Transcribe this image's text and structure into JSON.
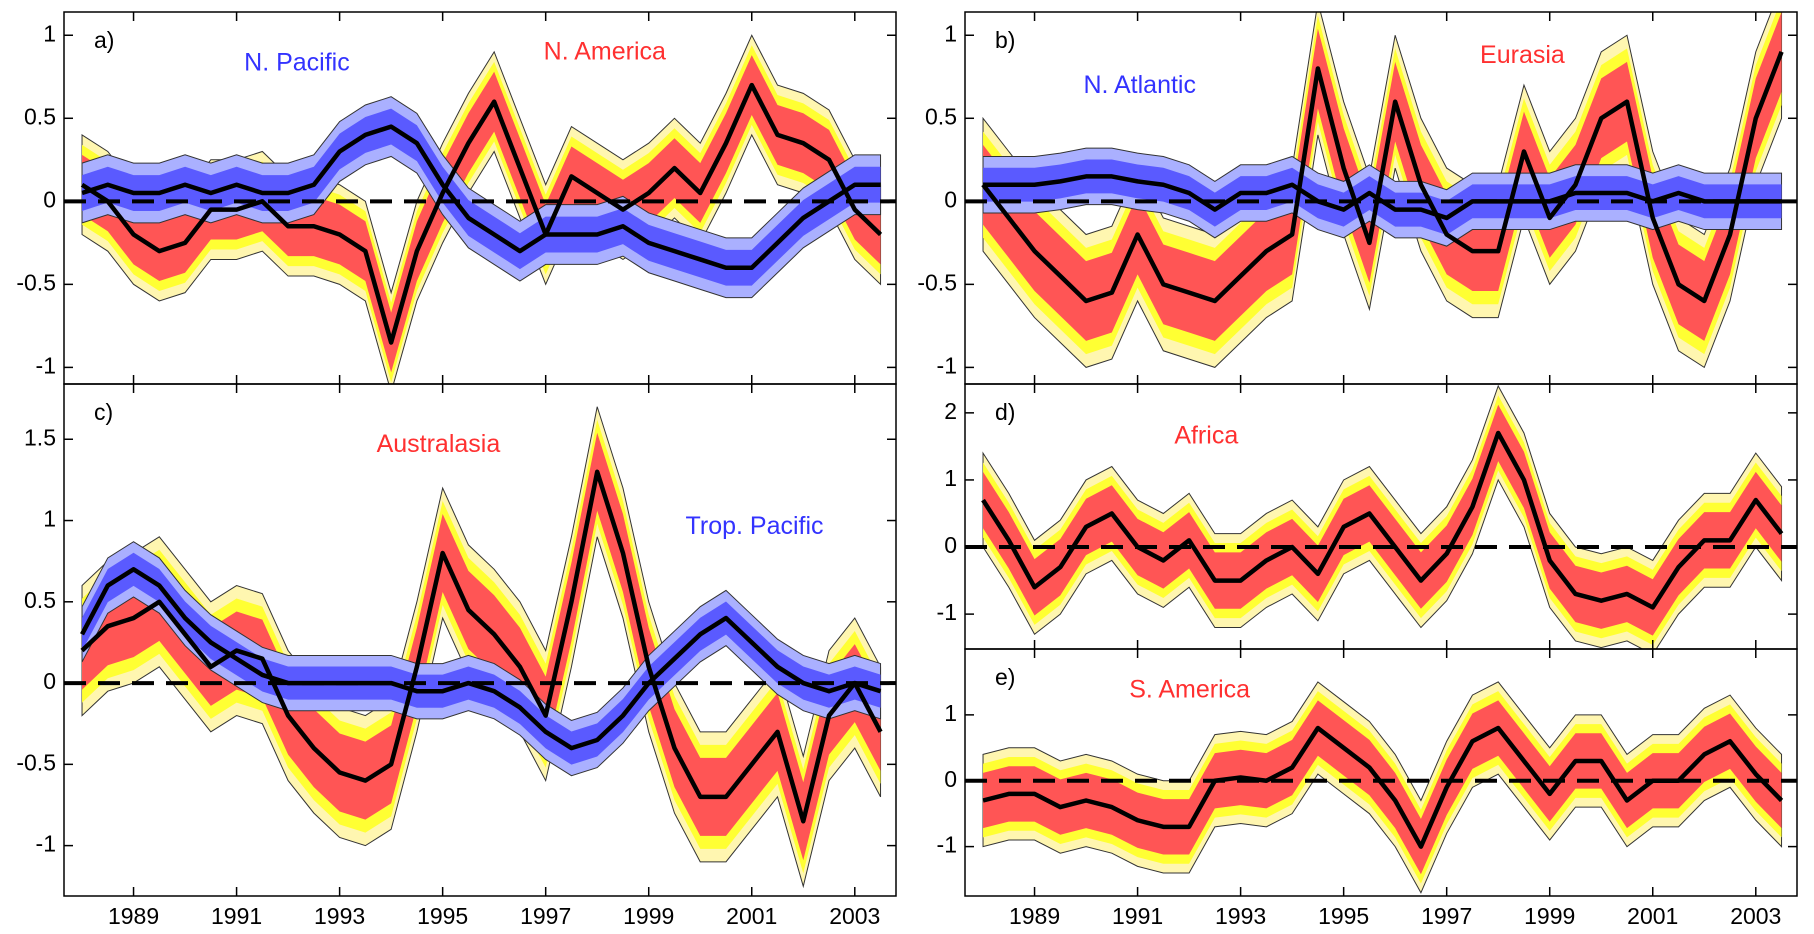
{
  "chart_data": [
    {
      "type": "line",
      "panel": "a)",
      "xlim": [
        1987.65,
        2003.8
      ],
      "ylim": [
        -1.1,
        1.14
      ],
      "xticks": [
        1989,
        1991,
        1993,
        1995,
        1997,
        1999,
        2001,
        2003
      ],
      "show_xtick_labels": false,
      "yticks": [
        -1,
        -0.5,
        0,
        0.5,
        1
      ],
      "zero_line": true,
      "x": [
        1988,
        1988.5,
        1989,
        1989.5,
        1990,
        1990.5,
        1991,
        1991.5,
        1992,
        1992.5,
        1993,
        1993.5,
        1994,
        1994.5,
        1995,
        1995.5,
        1996,
        1996.5,
        1997,
        1997.5,
        1998,
        1998.5,
        1999,
        1999.5,
        2000,
        2000.5,
        2001,
        2001.5,
        2002,
        2002.5,
        2003,
        2003.5
      ],
      "series": [
        {
          "name": "N. America",
          "color": "#000000",
          "label_color": "#ff3030",
          "band_colors": [
            "#fff6b0",
            "#ffff33",
            "#ff5555"
          ],
          "error": 0.3,
          "values": [
            0.1,
            0.0,
            -0.2,
            -0.3,
            -0.25,
            -0.05,
            -0.05,
            0.0,
            -0.15,
            -0.15,
            -0.2,
            -0.3,
            -0.85,
            -0.3,
            0.05,
            0.35,
            0.6,
            0.2,
            -0.2,
            0.15,
            0.05,
            -0.05,
            0.05,
            0.2,
            0.05,
            0.35,
            0.7,
            0.4,
            0.35,
            0.25,
            -0.05,
            -0.2
          ]
        },
        {
          "name": "N. Pacific",
          "color": "#000000",
          "label_color": "#3333ff",
          "band_colors": [
            "#aab0ff",
            "#5a5aff"
          ],
          "error": 0.18,
          "values": [
            0.05,
            0.1,
            0.05,
            0.05,
            0.1,
            0.05,
            0.1,
            0.05,
            0.05,
            0.1,
            0.3,
            0.4,
            0.45,
            0.35,
            0.1,
            -0.1,
            -0.2,
            -0.3,
            -0.2,
            -0.2,
            -0.2,
            -0.15,
            -0.25,
            -0.3,
            -0.35,
            -0.4,
            -0.4,
            -0.25,
            -0.1,
            0.0,
            0.1,
            0.1
          ]
        }
      ]
    },
    {
      "type": "line",
      "panel": "b)",
      "xlim": [
        1987.65,
        2003.8
      ],
      "ylim": [
        -1.1,
        1.14
      ],
      "xticks": [
        1989,
        1991,
        1993,
        1995,
        1997,
        1999,
        2001,
        2003
      ],
      "show_xtick_labels": false,
      "yticks": [
        -1,
        -0.5,
        0,
        0.5,
        1
      ],
      "zero_line": true,
      "x": [
        1988,
        1988.5,
        1989,
        1989.5,
        1990,
        1990.5,
        1991,
        1991.5,
        1992,
        1992.5,
        1993,
        1993.5,
        1994,
        1994.5,
        1995,
        1995.5,
        1996,
        1996.5,
        1997,
        1997.5,
        1998,
        1998.5,
        1999,
        1999.5,
        2000,
        2000.5,
        2001,
        2001.5,
        2002,
        2002.5,
        2003,
        2003.5
      ],
      "series": [
        {
          "name": "Eurasia",
          "color": "#000000",
          "label_color": "#ff3030",
          "band_colors": [
            "#fff6b0",
            "#ffff33",
            "#ff5555"
          ],
          "error": 0.4,
          "values": [
            0.1,
            -0.1,
            -0.3,
            -0.45,
            -0.6,
            -0.55,
            -0.2,
            -0.5,
            -0.55,
            -0.6,
            -0.45,
            -0.3,
            -0.2,
            0.8,
            0.2,
            -0.25,
            0.6,
            0.1,
            -0.2,
            -0.3,
            -0.3,
            0.3,
            -0.1,
            0.1,
            0.5,
            0.6,
            -0.1,
            -0.5,
            -0.6,
            -0.2,
            0.5,
            0.9
          ]
        },
        {
          "name": "N. Atlantic",
          "color": "#000000",
          "label_color": "#3333ff",
          "band_colors": [
            "#aab0ff",
            "#5a5aff"
          ],
          "error": 0.17,
          "values": [
            0.1,
            0.1,
            0.1,
            0.12,
            0.15,
            0.15,
            0.12,
            0.1,
            0.05,
            -0.05,
            0.05,
            0.05,
            0.1,
            0.0,
            -0.05,
            0.05,
            -0.05,
            -0.05,
            -0.1,
            0.0,
            0.0,
            0.0,
            0.0,
            0.05,
            0.05,
            0.05,
            0.0,
            0.05,
            0.0,
            0.0,
            0.0,
            0.0
          ]
        }
      ]
    },
    {
      "type": "line",
      "panel": "c)",
      "xlim": [
        1987.65,
        2003.8
      ],
      "ylim": [
        -1.31,
        1.84
      ],
      "xticks": [
        1989,
        1991,
        1993,
        1995,
        1997,
        1999,
        2001,
        2003
      ],
      "show_xtick_labels": true,
      "yticks": [
        -1,
        -0.5,
        0,
        0.5,
        1,
        1.5
      ],
      "zero_line": true,
      "x": [
        1988,
        1988.5,
        1989,
        1989.5,
        1990,
        1990.5,
        1991,
        1991.5,
        1992,
        1992.5,
        1993,
        1993.5,
        1994,
        1994.5,
        1995,
        1995.5,
        1996,
        1996.5,
        1997,
        1997.5,
        1998,
        1998.5,
        1999,
        1999.5,
        2000,
        2000.5,
        2001,
        2001.5,
        2002,
        2002.5,
        2003,
        2003.5
      ],
      "series": [
        {
          "name": "Australasia",
          "color": "#000000",
          "label_color": "#ff3030",
          "band_colors": [
            "#fff6b0",
            "#ffff33",
            "#ff5555"
          ],
          "error": 0.4,
          "values": [
            0.2,
            0.35,
            0.4,
            0.5,
            0.3,
            0.1,
            0.2,
            0.15,
            -0.2,
            -0.4,
            -0.55,
            -0.6,
            -0.5,
            0.1,
            0.8,
            0.45,
            0.3,
            0.1,
            -0.2,
            0.5,
            1.3,
            0.8,
            0.1,
            -0.4,
            -0.7,
            -0.7,
            -0.5,
            -0.3,
            -0.85,
            -0.2,
            0.0,
            -0.3
          ]
        },
        {
          "name": "Trop. Pacific",
          "color": "#000000",
          "label_color": "#3333ff",
          "band_colors": [
            "#aab0ff",
            "#5a5aff"
          ],
          "error": 0.17,
          "values": [
            0.3,
            0.6,
            0.7,
            0.6,
            0.4,
            0.25,
            0.15,
            0.05,
            0.0,
            0.0,
            0.0,
            0.0,
            0.0,
            -0.05,
            -0.05,
            0.0,
            -0.05,
            -0.15,
            -0.3,
            -0.4,
            -0.35,
            -0.2,
            0.0,
            0.15,
            0.3,
            0.4,
            0.25,
            0.1,
            0.0,
            -0.05,
            0.0,
            -0.05
          ]
        }
      ]
    },
    {
      "type": "line",
      "panel": "d)",
      "xlim": [
        1987.65,
        2003.8
      ],
      "ylim": [
        -1.52,
        2.43
      ],
      "xticks": [
        1989,
        1991,
        1993,
        1995,
        1997,
        1999,
        2001,
        2003
      ],
      "show_xtick_labels": false,
      "yticks": [
        -1,
        0,
        1,
        2
      ],
      "zero_line": true,
      "x": [
        1988,
        1988.5,
        1989,
        1989.5,
        1990,
        1990.5,
        1991,
        1991.5,
        1992,
        1992.5,
        1993,
        1993.5,
        1994,
        1994.5,
        1995,
        1995.5,
        1996,
        1996.5,
        1997,
        1997.5,
        1998,
        1998.5,
        1999,
        1999.5,
        2000,
        2000.5,
        2001,
        2001.5,
        2002,
        2002.5,
        2003,
        2003.5
      ],
      "series": [
        {
          "name": "Africa",
          "color": "#000000",
          "label_color": "#ff3030",
          "band_colors": [
            "#fff6b0",
            "#ffff33",
            "#ff5555"
          ],
          "error": 0.7,
          "values": [
            0.7,
            0.1,
            -0.6,
            -0.3,
            0.3,
            0.5,
            0.0,
            -0.2,
            0.1,
            -0.5,
            -0.5,
            -0.2,
            0.0,
            -0.4,
            0.3,
            0.5,
            0.0,
            -0.5,
            -0.1,
            0.6,
            1.7,
            1.0,
            -0.2,
            -0.7,
            -0.8,
            -0.7,
            -0.9,
            -0.3,
            0.1,
            0.1,
            0.7,
            0.2
          ]
        }
      ]
    },
    {
      "type": "line",
      "panel": "e)",
      "xlim": [
        1987.65,
        2003.8
      ],
      "ylim": [
        -1.75,
        2.0
      ],
      "xticks": [
        1989,
        1991,
        1993,
        1995,
        1997,
        1999,
        2001,
        2003
      ],
      "show_xtick_labels": true,
      "yticks": [
        -1,
        0,
        1
      ],
      "zero_line": true,
      "x": [
        1988,
        1988.5,
        1989,
        1989.5,
        1990,
        1990.5,
        1991,
        1991.5,
        1992,
        1992.5,
        1993,
        1993.5,
        1994,
        1994.5,
        1995,
        1995.5,
        1996,
        1996.5,
        1997,
        1997.5,
        1998,
        1998.5,
        1999,
        1999.5,
        2000,
        2000.5,
        2001,
        2001.5,
        2002,
        2002.5,
        2003,
        2003.5
      ],
      "series": [
        {
          "name": "S. America",
          "color": "#000000",
          "label_color": "#ff3030",
          "band_colors": [
            "#fff6b0",
            "#ffff33",
            "#ff5555"
          ],
          "error": 0.7,
          "values": [
            -0.3,
            -0.2,
            -0.2,
            -0.4,
            -0.3,
            -0.4,
            -0.6,
            -0.7,
            -0.7,
            0.0,
            0.05,
            0.0,
            0.2,
            0.8,
            0.5,
            0.2,
            -0.3,
            -1.0,
            -0.1,
            0.6,
            0.8,
            0.3,
            -0.2,
            0.3,
            0.3,
            -0.3,
            0.0,
            0.0,
            0.4,
            0.6,
            0.1,
            -0.3
          ]
        }
      ]
    }
  ]
}
